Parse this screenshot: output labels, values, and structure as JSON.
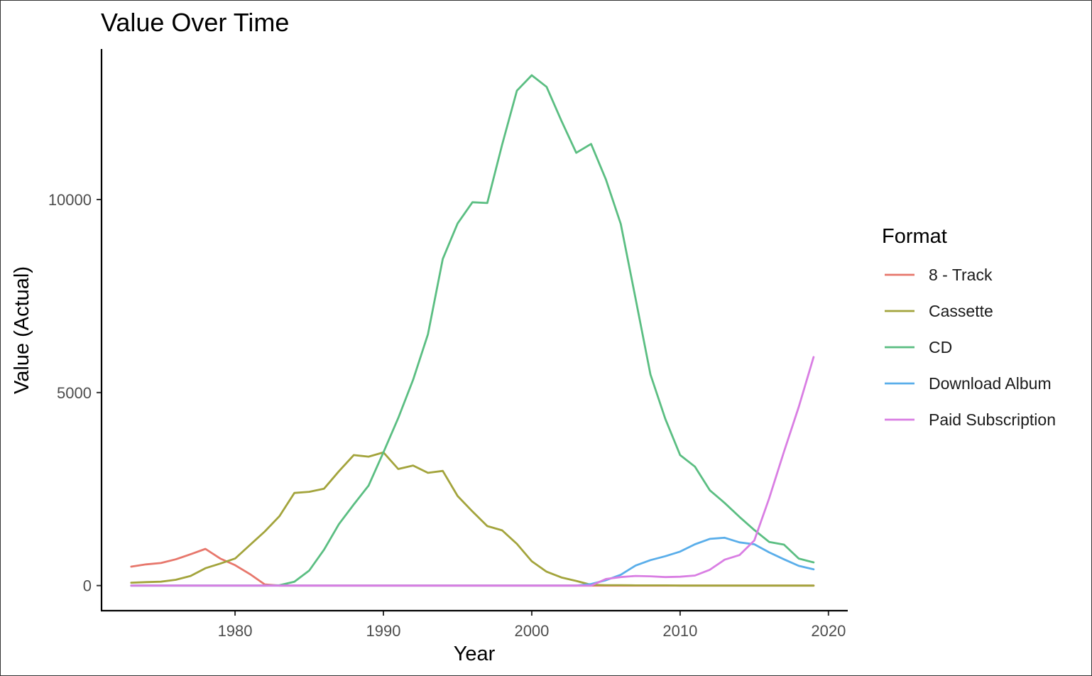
{
  "chart_data": {
    "type": "line",
    "title": "Value Over Time",
    "xlabel": "Year",
    "ylabel": "Value (Actual)",
    "xlim": [
      1971,
      2021.3
    ],
    "ylim": [
      -650,
      13900
    ],
    "xticks": [
      1980,
      1990,
      2000,
      2010,
      2020
    ],
    "yticks": [
      0,
      5000,
      10000
    ],
    "x": [
      1973,
      1974,
      1975,
      1976,
      1977,
      1978,
      1979,
      1980,
      1981,
      1982,
      1983,
      1984,
      1985,
      1986,
      1987,
      1988,
      1989,
      1990,
      1991,
      1992,
      1993,
      1994,
      1995,
      1996,
      1997,
      1998,
      1999,
      2000,
      2001,
      2002,
      2003,
      2004,
      2005,
      2006,
      2007,
      2008,
      2009,
      2010,
      2011,
      2012,
      2013,
      2014,
      2015,
      2016,
      2017,
      2018,
      2019
    ],
    "legend": {
      "title": "Format",
      "position": "right"
    },
    "series": [
      {
        "name": "8 - Track",
        "color": "#E7776C",
        "values": [
          490,
          550,
          585,
          680,
          810,
          950,
          700,
          530,
          300,
          30,
          0,
          0,
          0,
          0,
          0,
          0,
          0,
          0,
          0,
          0,
          0,
          0,
          0,
          0,
          0,
          0,
          0,
          0,
          0,
          0,
          0,
          0,
          0,
          0,
          0,
          0,
          0,
          0,
          0,
          0,
          0,
          0,
          0,
          0,
          0,
          0,
          0
        ]
      },
      {
        "name": "Cassette",
        "color": "#A3A43C",
        "values": [
          75,
          90,
          100,
          150,
          250,
          450,
          570,
          700,
          1050,
          1400,
          1800,
          2400,
          2430,
          2510,
          2960,
          3380,
          3340,
          3450,
          3020,
          3110,
          2920,
          2970,
          2320,
          1920,
          1540,
          1430,
          1080,
          630,
          360,
          210,
          120,
          20,
          10,
          10,
          5,
          5,
          5,
          0,
          0,
          0,
          0,
          0,
          0,
          0,
          0,
          0,
          0
        ]
      },
      {
        "name": "CD",
        "color": "#5BBE82",
        "values": [
          0,
          0,
          0,
          0,
          0,
          0,
          0,
          0,
          0,
          0,
          10,
          100,
          390,
          930,
          1590,
          2100,
          2590,
          3450,
          4340,
          5330,
          6510,
          8460,
          9380,
          9930,
          9910,
          11420,
          12820,
          13220,
          12920,
          12040,
          11210,
          11440,
          10520,
          9370,
          7430,
          5470,
          4320,
          3380,
          3080,
          2470,
          2140,
          1780,
          1440,
          1130,
          1060,
          700,
          600
        ]
      },
      {
        "name": "Download Album",
        "color": "#5AAEEA",
        "values": [
          0,
          0,
          0,
          0,
          0,
          0,
          0,
          0,
          0,
          0,
          0,
          0,
          0,
          0,
          0,
          0,
          0,
          0,
          0,
          0,
          0,
          0,
          0,
          0,
          0,
          0,
          0,
          0,
          0,
          0,
          0,
          40,
          140,
          280,
          520,
          660,
          760,
          880,
          1070,
          1210,
          1240,
          1120,
          1070,
          860,
          680,
          510,
          420
        ]
      },
      {
        "name": "Paid Subscription",
        "color": "#D97EE3",
        "values": [
          0,
          0,
          0,
          0,
          0,
          0,
          0,
          0,
          0,
          0,
          0,
          0,
          0,
          0,
          0,
          0,
          0,
          0,
          0,
          0,
          0,
          0,
          0,
          0,
          0,
          0,
          0,
          0,
          0,
          0,
          0,
          0,
          170,
          220,
          250,
          240,
          220,
          230,
          260,
          410,
          670,
          790,
          1170,
          2260,
          3470,
          4630,
          5920
        ]
      }
    ]
  }
}
